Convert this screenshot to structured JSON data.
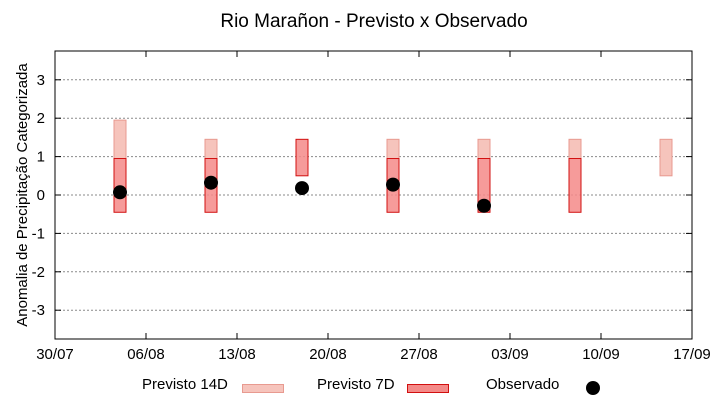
{
  "chart_data": {
    "type": "range-bar",
    "title": "Rio Marañon - Previsto x Observado",
    "xlabel": "",
    "ylabel": "Anomalia de Precipitação Categorizada",
    "ylim": [
      -3.75,
      3.75
    ],
    "yticks": [
      3,
      2,
      1,
      0,
      -1,
      -2,
      -3
    ],
    "xlim": [
      "2023-07-30",
      "2023-09-17"
    ],
    "xtick_labels": [
      "30/07",
      "06/08",
      "13/08",
      "20/08",
      "27/08",
      "03/09",
      "10/09",
      "17/09"
    ],
    "grid": true,
    "legend_placement": "bottom",
    "series": [
      {
        "name": "Previsto 14D",
        "kind": "range",
        "color": "#f6c4bc",
        "border": "#e89a90",
        "points": [
          {
            "date": "2023-08-04",
            "low": 0.95,
            "high": 1.95
          },
          {
            "date": "2023-08-11",
            "low": 0.95,
            "high": 1.45
          },
          {
            "date": "2023-08-25",
            "low": 0.95,
            "high": 1.45
          },
          {
            "date": "2023-09-01",
            "low": 0.95,
            "high": 1.45
          },
          {
            "date": "2023-09-08",
            "low": 0.95,
            "high": 1.45
          },
          {
            "date": "2023-09-15",
            "low": 0.5,
            "high": 1.45
          }
        ]
      },
      {
        "name": "Previsto 7D",
        "kind": "range",
        "color": "#f48a88",
        "border": "#d21010",
        "points": [
          {
            "date": "2023-08-04",
            "low": -0.45,
            "high": 0.95
          },
          {
            "date": "2023-08-11",
            "low": -0.45,
            "high": 0.95
          },
          {
            "date": "2023-08-18",
            "low": 0.5,
            "high": 1.45
          },
          {
            "date": "2023-08-25",
            "low": -0.45,
            "high": 0.95
          },
          {
            "date": "2023-09-01",
            "low": -0.45,
            "high": 0.95
          },
          {
            "date": "2023-09-08",
            "low": -0.45,
            "high": 0.95
          }
        ]
      },
      {
        "name": "Observado",
        "kind": "point",
        "color": "#000000",
        "points": [
          {
            "date": "2023-08-04",
            "value": 0.07
          },
          {
            "date": "2023-08-11",
            "value": 0.32
          },
          {
            "date": "2023-08-18",
            "value": 0.18
          },
          {
            "date": "2023-08-25",
            "value": 0.27
          },
          {
            "date": "2023-09-01",
            "value": -0.28
          }
        ]
      }
    ]
  }
}
